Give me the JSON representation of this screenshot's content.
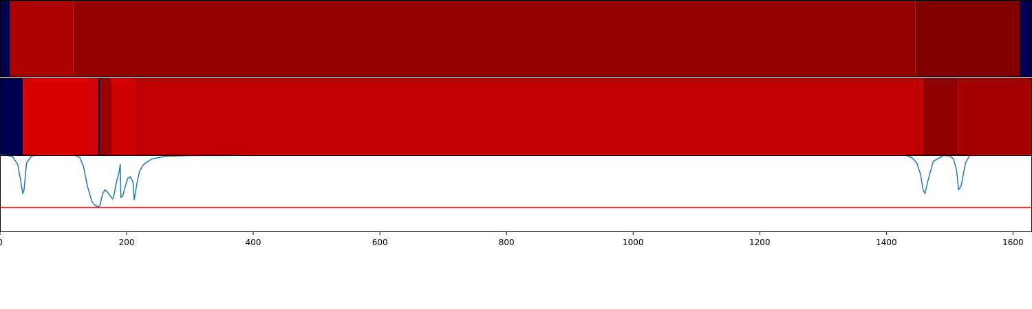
{
  "chart_data": [
    {
      "type": "heatmap",
      "xlim": [
        0,
        1630
      ],
      "colormap": "seismic",
      "segments": [
        {
          "x0": 0,
          "x1": 16,
          "color": "#000050"
        },
        {
          "x0": 16,
          "x1": 116,
          "color": "#aa0000"
        },
        {
          "x0": 116,
          "x1": 1446,
          "color": "#950000"
        },
        {
          "x0": 1446,
          "x1": 1611,
          "color": "#800000"
        },
        {
          "x0": 1611,
          "x1": 1630,
          "color": "#000050"
        }
      ]
    },
    {
      "type": "heatmap",
      "xlim": [
        0,
        1630
      ],
      "colormap": "seismic",
      "segments": [
        {
          "x0": 0,
          "x1": 36,
          "color": "#000050"
        },
        {
          "x0": 36,
          "x1": 155,
          "color": "#d80000"
        },
        {
          "x0": 155,
          "x1": 158,
          "color": "#000050"
        },
        {
          "x0": 158,
          "x1": 176,
          "color": "#9a0000"
        },
        {
          "x0": 176,
          "x1": 212,
          "color": "#d00000"
        },
        {
          "x0": 212,
          "x1": 1458,
          "color": "#c00000"
        },
        {
          "x0": 1458,
          "x1": 1513,
          "color": "#900000"
        },
        {
          "x0": 1513,
          "x1": 1630,
          "color": "#a80000"
        }
      ]
    },
    {
      "type": "line",
      "xlim": [
        0,
        1630
      ],
      "ylim": [
        0,
        1
      ],
      "x_ticks": [
        0,
        200,
        400,
        600,
        800,
        1000,
        1200,
        1400,
        1600
      ],
      "threshold": 0.32,
      "line_color": "#1f77b4",
      "threshold_color": "#ff0000",
      "x": [
        0,
        10,
        20,
        28,
        32,
        36,
        38,
        42,
        50,
        60,
        80,
        100,
        118,
        126,
        132,
        138,
        145,
        150,
        155,
        158,
        162,
        166,
        170,
        174,
        178,
        180,
        184,
        188,
        190,
        191,
        194,
        198,
        202,
        206,
        210,
        212,
        216,
        220,
        225,
        230,
        240,
        260,
        300,
        400,
        600,
        800,
        1000,
        1200,
        1400,
        1430,
        1440,
        1448,
        1454,
        1458,
        1461,
        1466,
        1474,
        1490,
        1500,
        1506,
        1511,
        1514,
        1518,
        1525,
        1532,
        1560,
        1630
      ],
      "y": [
        1.0,
        1.0,
        0.98,
        0.88,
        0.7,
        0.5,
        0.55,
        0.9,
        0.99,
        1.0,
        1.0,
        1.0,
        1.0,
        0.97,
        0.85,
        0.6,
        0.4,
        0.35,
        0.33,
        0.35,
        0.5,
        0.55,
        0.52,
        0.47,
        0.43,
        0.48,
        0.65,
        0.78,
        0.88,
        0.45,
        0.47,
        0.6,
        0.7,
        0.72,
        0.65,
        0.42,
        0.62,
        0.78,
        0.86,
        0.9,
        0.95,
        0.985,
        0.995,
        1.0,
        1.0,
        1.0,
        1.0,
        1.0,
        1.0,
        1.0,
        0.97,
        0.9,
        0.75,
        0.55,
        0.5,
        0.68,
        0.92,
        0.995,
        0.99,
        0.95,
        0.8,
        0.55,
        0.6,
        0.9,
        1.0,
        1.0,
        1.0
      ]
    }
  ]
}
